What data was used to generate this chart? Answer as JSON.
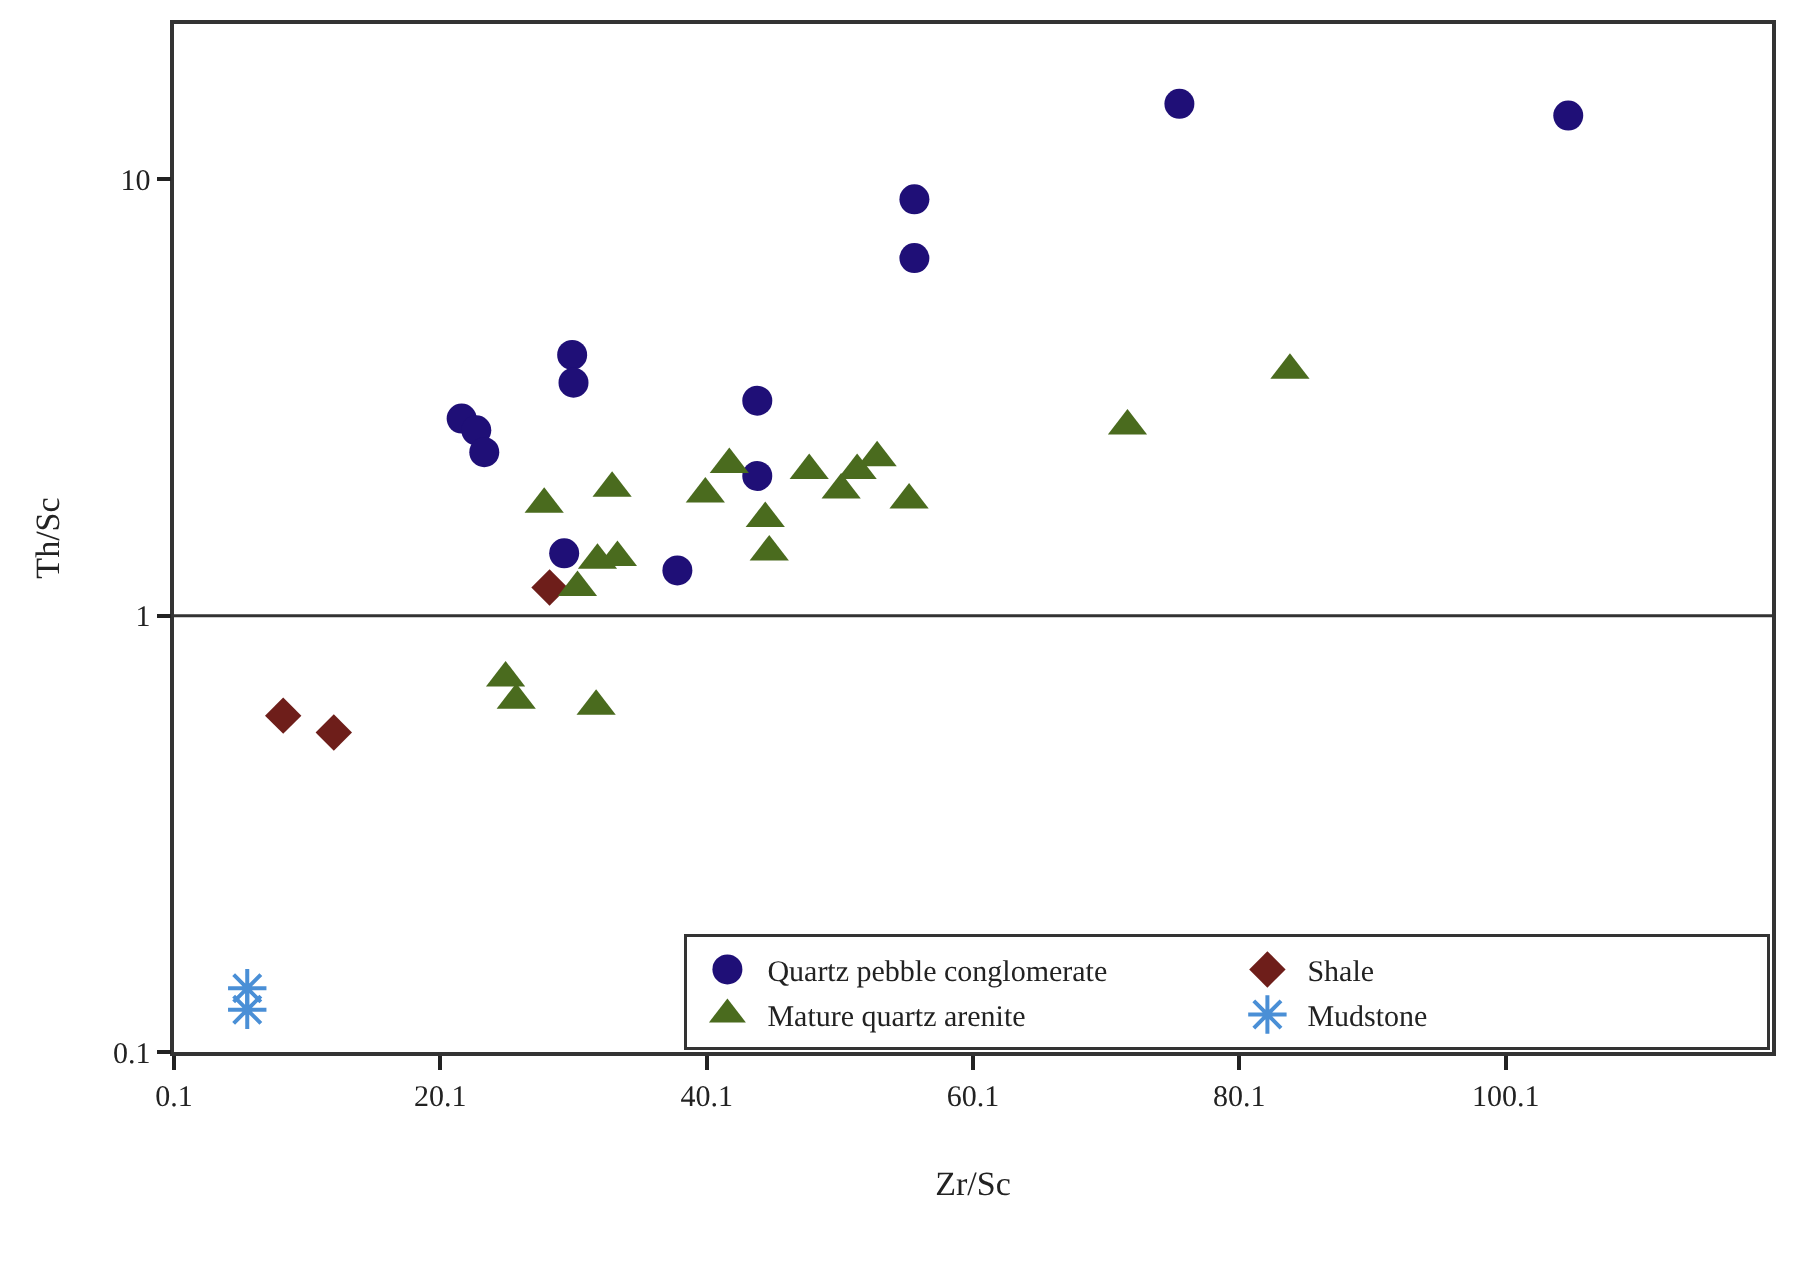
{
  "chart_data": {
    "type": "scatter",
    "xlabel": "Zr/Sc",
    "ylabel": "Th/Sc",
    "log": "y",
    "xlim": [
      0.1,
      120.1
    ],
    "xticks": [
      0.1,
      20.1,
      40.1,
      60.1,
      80.1,
      100.1
    ],
    "ylim": [
      0.1,
      22.7
    ],
    "yticks": [
      0.1,
      1,
      10
    ],
    "legend": "bottom right",
    "ref_lines": [
      {
        "axis": "y",
        "value": 1,
        "color": "#333333"
      }
    ],
    "series": [
      {
        "name": "Quartz pebble conglomerate",
        "color": "#1f0f77",
        "marker": "circle",
        "x": [
          21.7,
          22.8,
          23.4,
          30.0,
          30.1,
          29.4,
          37.9,
          43.9,
          43.9,
          55.7,
          55.7,
          75.6,
          104.8
        ],
        "values": [
          2.83,
          2.66,
          2.37,
          3.96,
          3.42,
          1.39,
          1.27,
          3.11,
          2.09,
          9.0,
          6.6,
          14.9,
          14.0
        ]
      },
      {
        "name": "Shale",
        "color": "#6e1e1a",
        "marker": "diamond",
        "x": [
          28.3,
          8.3,
          12.1
        ],
        "values": [
          1.16,
          0.59,
          0.54
        ]
      },
      {
        "name": "Mature quartz arenite",
        "color": "#4a6b1e",
        "marker": "triangle",
        "x": [
          27.9,
          33.0,
          41.8,
          40.0,
          47.8,
          50.2,
          51.4,
          52.9,
          55.3,
          44.5,
          44.8,
          31.9,
          33.4,
          30.4,
          25.0,
          25.8,
          31.8,
          71.7,
          83.9
        ],
        "values": [
          1.8,
          1.96,
          2.22,
          1.9,
          2.15,
          1.94,
          2.15,
          2.3,
          1.84,
          1.67,
          1.4,
          1.34,
          1.36,
          1.16,
          0.72,
          0.64,
          0.62,
          2.72,
          3.65
        ]
      },
      {
        "name": "Mudstone",
        "color": "#4a8fd6",
        "marker": "cross",
        "x": [
          5.6,
          5.6
        ],
        "values": [
          0.14,
          0.125
        ]
      }
    ]
  }
}
